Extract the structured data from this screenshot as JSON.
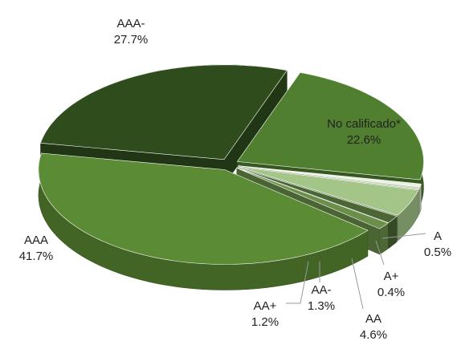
{
  "chart_data": {
    "type": "pie3d",
    "categories": [
      "AAA-",
      "No calificado*",
      "A",
      "A+",
      "AA",
      "AA-",
      "AA+",
      "AAA"
    ],
    "values": [
      27.7,
      22.6,
      0.5,
      0.4,
      4.6,
      1.3,
      1.2,
      41.7
    ],
    "value_labels": [
      "27.7%",
      "22.6%",
      "0.5%",
      "0.4%",
      "4.6%",
      "1.3%",
      "1.2%",
      "41.7%"
    ],
    "colors": [
      "#2f4d1c",
      "#4f7f2f",
      "#e9efe2",
      "#c6d9b3",
      "#a3c688",
      "#4b6634",
      "#6b8f4a",
      "#5b8b34"
    ]
  }
}
